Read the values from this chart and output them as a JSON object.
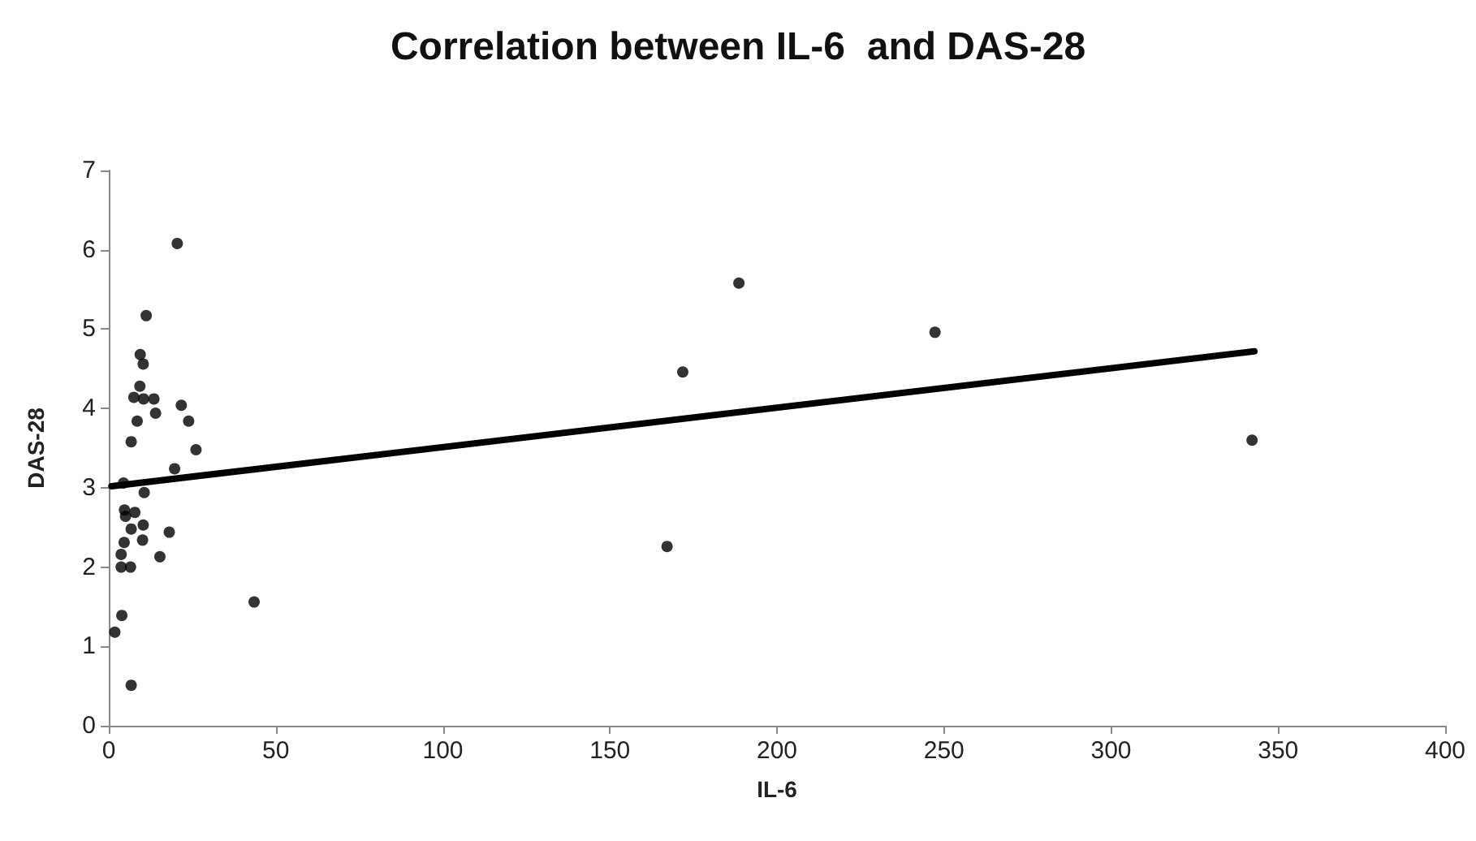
{
  "chart_data": {
    "type": "scatter",
    "title": "Correlation between IL-6  and DAS-28",
    "xlabel": "IL-6",
    "ylabel": "DAS-28",
    "xlim": [
      0,
      400
    ],
    "xticks": [
      0,
      50,
      100,
      150,
      200,
      250,
      300,
      350,
      400
    ],
    "ylim": [
      0,
      7
    ],
    "yticks": [
      0,
      1,
      2,
      3,
      4,
      5,
      6,
      7
    ],
    "grid": false,
    "marker": "circle",
    "series": [
      {
        "color": "#000000",
        "x": [
          20.5,
          11.2,
          9.4,
          10.3,
          9.3,
          7.5,
          10.4,
          13.5,
          14.0,
          21.7,
          8.5,
          23.9,
          6.7,
          26.1,
          19.7,
          4.4,
          10.6,
          4.7,
          7.8,
          5.0,
          10.3,
          6.7,
          18.1,
          10.1,
          4.6,
          3.7,
          15.3,
          3.7,
          6.5,
          3.9,
          1.8,
          43.5,
          6.7,
          167.1,
          171.8,
          188.6,
          247.3,
          342.2
        ],
        "values": [
          6.08,
          5.17,
          4.68,
          4.56,
          4.28,
          4.14,
          4.12,
          4.12,
          3.94,
          4.04,
          3.84,
          3.84,
          3.58,
          3.48,
          3.24,
          3.06,
          2.94,
          2.72,
          2.69,
          2.64,
          2.53,
          2.48,
          2.44,
          2.34,
          2.31,
          2.16,
          2.13,
          2.0,
          2.0,
          1.39,
          1.18,
          1.56,
          0.51,
          2.26,
          4.46,
          5.58,
          4.96,
          3.6
        ]
      },
      {
        "type": "line",
        "color": "#000000",
        "marker": "none",
        "line_style": "solid",
        "x": [
          0.8,
          342.9
        ],
        "values": [
          3.02,
          4.72
        ]
      }
    ]
  }
}
